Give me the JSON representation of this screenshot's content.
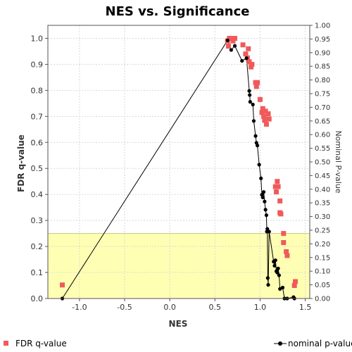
{
  "chart_data": {
    "type": "scatter",
    "title": "NES vs. Significance",
    "xlabel": "NES",
    "ylabel": "FDR q-value",
    "y2label": "Nominal P-value",
    "xlim": [
      -1.35,
      1.55
    ],
    "ylim": [
      0,
      1.05
    ],
    "y2lim": [
      0,
      1.0
    ],
    "x_ticks": [
      "-1.0",
      "-0.5",
      "0.0",
      "0.5",
      "1.0",
      "1.5"
    ],
    "x_tick_values": [
      -1.0,
      -0.5,
      0.0,
      0.5,
      1.0,
      1.5
    ],
    "y_ticks": [
      "0.0",
      "0.1",
      "0.2",
      "0.3",
      "0.4",
      "0.5",
      "0.6",
      "0.7",
      "0.8",
      "0.9",
      "1.0"
    ],
    "y_tick_values": [
      0.0,
      0.1,
      0.2,
      0.3,
      0.4,
      0.5,
      0.6,
      0.7,
      0.8,
      0.9,
      1.0
    ],
    "y2_ticks": [
      "0.00",
      "0.05",
      "0.10",
      "0.15",
      "0.20",
      "0.25",
      "0.30",
      "0.35",
      "0.40",
      "0.45",
      "0.50",
      "0.55",
      "0.60",
      "0.65",
      "0.70",
      "0.75",
      "0.80",
      "0.85",
      "0.90",
      "0.95",
      "1.00"
    ],
    "y2_tick_values": [
      0.0,
      0.05,
      0.1,
      0.15,
      0.2,
      0.25,
      0.3,
      0.35,
      0.4,
      0.45,
      0.5,
      0.55,
      0.6,
      0.65,
      0.7,
      0.75,
      0.8,
      0.85,
      0.9,
      0.95,
      1.0
    ],
    "significance_threshold": 0.25,
    "grid": true,
    "colors": {
      "fdr": "#f05a5a",
      "nominal": "#000000",
      "threshold_band": "#ffffb4",
      "threshold_line": "#c8c87a",
      "grid": "#d8d8d8"
    },
    "series": [
      {
        "name": "FDR q-value",
        "axis": "left",
        "marker": "square",
        "points": [
          [
            -1.19,
            0.052
          ],
          [
            0.64,
            0.99
          ],
          [
            0.65,
            0.97
          ],
          [
            0.66,
            1.0
          ],
          [
            0.68,
            1.0
          ],
          [
            0.7,
            0.99
          ],
          [
            0.72,
            1.0
          ],
          [
            0.81,
            0.975
          ],
          [
            0.84,
            0.94
          ],
          [
            0.86,
            0.925
          ],
          [
            0.87,
            0.96
          ],
          [
            0.88,
            0.91
          ],
          [
            0.9,
            0.89
          ],
          [
            0.91,
            0.9
          ],
          [
            0.95,
            0.83
          ],
          [
            0.96,
            0.815
          ],
          [
            0.97,
            0.83
          ],
          [
            1.0,
            0.765
          ],
          [
            1.02,
            0.715
          ],
          [
            1.03,
            0.73
          ],
          [
            1.04,
            0.7
          ],
          [
            1.05,
            0.685
          ],
          [
            1.06,
            0.72
          ],
          [
            1.07,
            0.67
          ],
          [
            1.08,
            0.69
          ],
          [
            1.09,
            0.71
          ],
          [
            1.1,
            0.69
          ],
          [
            1.17,
            0.43
          ],
          [
            1.18,
            0.41
          ],
          [
            1.19,
            0.45
          ],
          [
            1.2,
            0.43
          ],
          [
            1.22,
            0.375
          ],
          [
            1.22,
            0.33
          ],
          [
            1.23,
            0.325
          ],
          [
            1.26,
            0.25
          ],
          [
            1.26,
            0.215
          ],
          [
            1.29,
            0.18
          ],
          [
            1.3,
            0.165
          ],
          [
            1.38,
            0.05
          ],
          [
            1.39,
            0.065
          ]
        ]
      },
      {
        "name": "nominal p-value",
        "axis": "right",
        "marker": "circle",
        "line": true,
        "points": [
          [
            -1.19,
            0.0
          ],
          [
            0.64,
            0.945
          ],
          [
            0.68,
            0.91
          ],
          [
            0.72,
            0.925
          ],
          [
            0.8,
            0.87
          ],
          [
            0.85,
            0.88
          ],
          [
            0.88,
            0.76
          ],
          [
            0.885,
            0.745
          ],
          [
            0.89,
            0.72
          ],
          [
            0.92,
            0.71
          ],
          [
            0.93,
            0.65
          ],
          [
            0.95,
            0.595
          ],
          [
            0.96,
            0.57
          ],
          [
            0.97,
            0.56
          ],
          [
            0.99,
            0.49
          ],
          [
            1.01,
            0.44
          ],
          [
            1.02,
            0.38
          ],
          [
            1.03,
            0.37
          ],
          [
            1.04,
            0.39
          ],
          [
            1.05,
            0.355
          ],
          [
            1.06,
            0.325
          ],
          [
            1.07,
            0.305
          ],
          [
            1.075,
            0.245
          ],
          [
            1.08,
            0.255
          ],
          [
            1.085,
            0.075
          ],
          [
            1.09,
            0.05
          ],
          [
            1.1,
            0.245
          ],
          [
            1.15,
            0.135
          ],
          [
            1.16,
            0.12
          ],
          [
            1.17,
            0.14
          ],
          [
            1.18,
            0.1
          ],
          [
            1.19,
            0.095
          ],
          [
            1.2,
            0.11
          ],
          [
            1.21,
            0.085
          ],
          [
            1.22,
            0.035
          ],
          [
            1.25,
            0.04
          ],
          [
            1.27,
            0.0
          ],
          [
            1.3,
            0.0
          ],
          [
            1.37,
            0.005
          ],
          [
            1.38,
            0.0
          ]
        ]
      }
    ],
    "legend": {
      "position": "bottom",
      "items": [
        "FDR q-value",
        "nominal p-value"
      ]
    }
  }
}
